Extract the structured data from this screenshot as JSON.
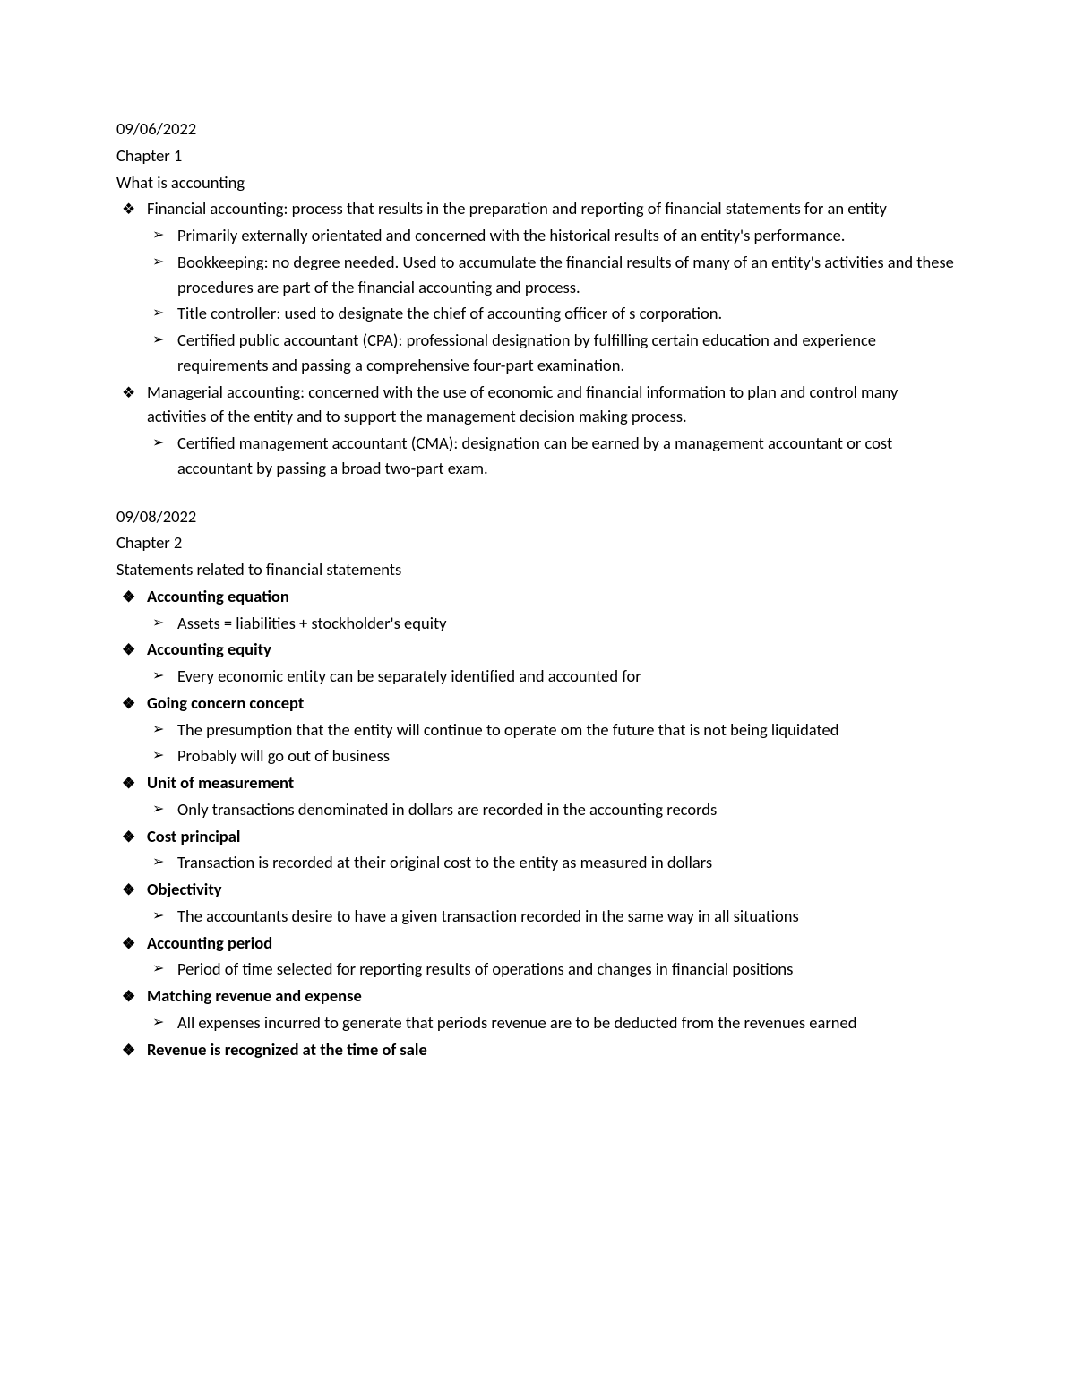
{
  "section1": {
    "date": "09/06/2022",
    "chapter": "Chapter 1",
    "topic": "What is accounting",
    "items": [
      {
        "text": "Financial accounting: process that results in the preparation and reporting of financial statements for an entity",
        "sub": [
          "Primarily externally orientated and concerned with the historical results of an entity's performance.",
          "Bookkeeping: no degree needed. Used to accumulate the financial results of many of an entity's activities and these procedures are part of the financial accounting and process.",
          "Title controller: used to designate the chief of accounting officer of s corporation.",
          "Certified public accountant (CPA): professional designation by fulfilling certain education and experience requirements and passing a comprehensive four-part examination."
        ]
      },
      {
        "text": "Managerial accounting: concerned with the use of economic and financial information to plan and control many activities of the entity and to support the management decision making process.",
        "sub": [
          "Certified management accountant (CMA): designation can be earned by a management accountant or cost accountant by passing a broad two-part exam."
        ]
      }
    ]
  },
  "section2": {
    "date": "09/08/2022",
    "chapter": "Chapter 2",
    "topic": "Statements related to financial statements",
    "items": [
      {
        "text": "Accounting equation",
        "sub": [
          "Assets = liabilities + stockholder's equity"
        ]
      },
      {
        "text": "Accounting equity",
        "sub": [
          "Every economic entity can be separately identified and accounted for"
        ]
      },
      {
        "text": "Going concern concept",
        "sub": [
          "The presumption that the entity will continue to operate om the future that is not being liquidated",
          "Probably will go out of business"
        ]
      },
      {
        "text": "Unit of measurement",
        "sub": [
          "Only transactions denominated in dollars are recorded in the accounting records"
        ]
      },
      {
        "text": "Cost principal",
        "sub": [
          "Transaction is recorded at their original cost to the entity as measured in dollars"
        ]
      },
      {
        "text": "Objectivity",
        "sub": [
          "The accountants desire to have a given transaction recorded in the same way in all situations"
        ]
      },
      {
        "text": "Accounting period",
        "sub": [
          "Period of time selected for reporting results of operations and changes in financial positions"
        ]
      },
      {
        "text": "Matching revenue and expense",
        "sub": [
          "All expenses incurred to generate that periods revenue are to be deducted from the revenues earned"
        ]
      },
      {
        "text": "Revenue is recognized at the time of sale",
        "sub": []
      }
    ]
  }
}
